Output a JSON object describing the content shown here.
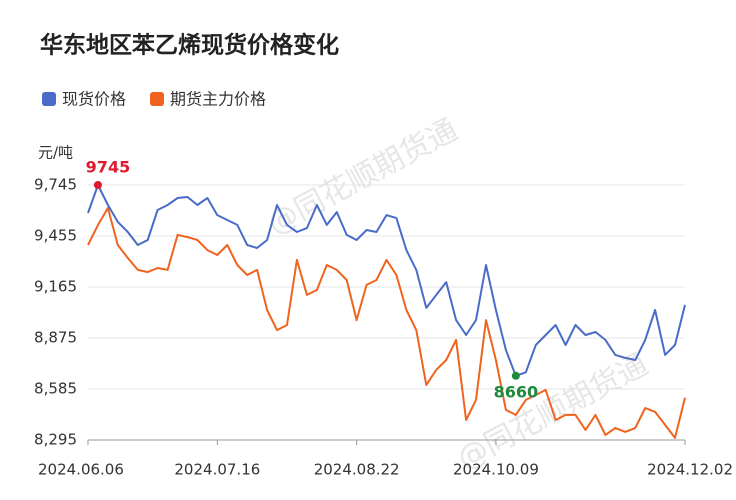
{
  "chart_data": {
    "type": "line",
    "title": "华东地区苯乙烯现货价格变化",
    "y_unit": "元/吨",
    "watermark": "@同花顺期货通",
    "categories": [
      "2024.06.06",
      null,
      null,
      null,
      null,
      null,
      null,
      null,
      null,
      null,
      null,
      null,
      null,
      "2024.07.16",
      null,
      null,
      null,
      null,
      null,
      null,
      null,
      null,
      null,
      null,
      null,
      null,
      null,
      "2024.08.22",
      null,
      null,
      null,
      null,
      null,
      null,
      null,
      null,
      null,
      null,
      null,
      null,
      null,
      "2024.10.09",
      null,
      null,
      null,
      null,
      null,
      null,
      null,
      null,
      null,
      null,
      null,
      null,
      null,
      null,
      null,
      null,
      null,
      null,
      "2024.12.02"
    ],
    "series": [
      {
        "name": "现货价格",
        "color": "#4a6cc8",
        "values": [
          9586,
          9745,
          9631,
          9535,
          9478,
          9404,
          9432,
          9603,
          9631,
          9671,
          9677,
          9631,
          9671,
          9574,
          9546,
          9518,
          9404,
          9387,
          9432,
          9631,
          9518,
          9478,
          9500,
          9631,
          9518,
          9591,
          9461,
          9432,
          9489,
          9478,
          9574,
          9557,
          9375,
          9262,
          9046,
          9120,
          9193,
          8977,
          8892,
          8977,
          9290,
          9034,
          8807,
          8660,
          8680,
          8835,
          8892,
          8949,
          8835,
          8949,
          8892,
          8909,
          8864,
          8779,
          8762,
          8750,
          8864,
          9034,
          8779,
          8835,
          9063
        ]
      },
      {
        "name": "期货主力价格",
        "color": "#f0631f",
        "values": [
          9404,
          9518,
          9614,
          9404,
          9330,
          9262,
          9250,
          9273,
          9262,
          9461,
          9449,
          9432,
          9375,
          9347,
          9404,
          9290,
          9233,
          9262,
          9034,
          8920,
          8949,
          9319,
          9120,
          9148,
          9290,
          9262,
          9205,
          8977,
          9177,
          9205,
          9319,
          9233,
          9034,
          8920,
          8608,
          8694,
          8750,
          8864,
          8409,
          8523,
          8977,
          8750,
          8466,
          8438,
          8523,
          8551,
          8580,
          8409,
          8438,
          8438,
          8352,
          8438,
          8324,
          8364,
          8341,
          8364,
          8477,
          8455,
          8381,
          8307,
          8535
        ]
      }
    ],
    "max_label": {
      "text": "9745",
      "color": "#e0192e"
    },
    "min_label": {
      "text": "8660",
      "color": "#1e8a3c"
    },
    "ylim": [
      8295,
      9745
    ],
    "yticks": [
      {
        "value": 8295,
        "label": "8,295"
      },
      {
        "value": 8585,
        "label": "8,585"
      },
      {
        "value": 8875,
        "label": "8,875"
      },
      {
        "value": 9165,
        "label": "9,165"
      },
      {
        "value": 9455,
        "label": "9,455"
      },
      {
        "value": 9745,
        "label": "9,745"
      }
    ],
    "grid": true
  }
}
